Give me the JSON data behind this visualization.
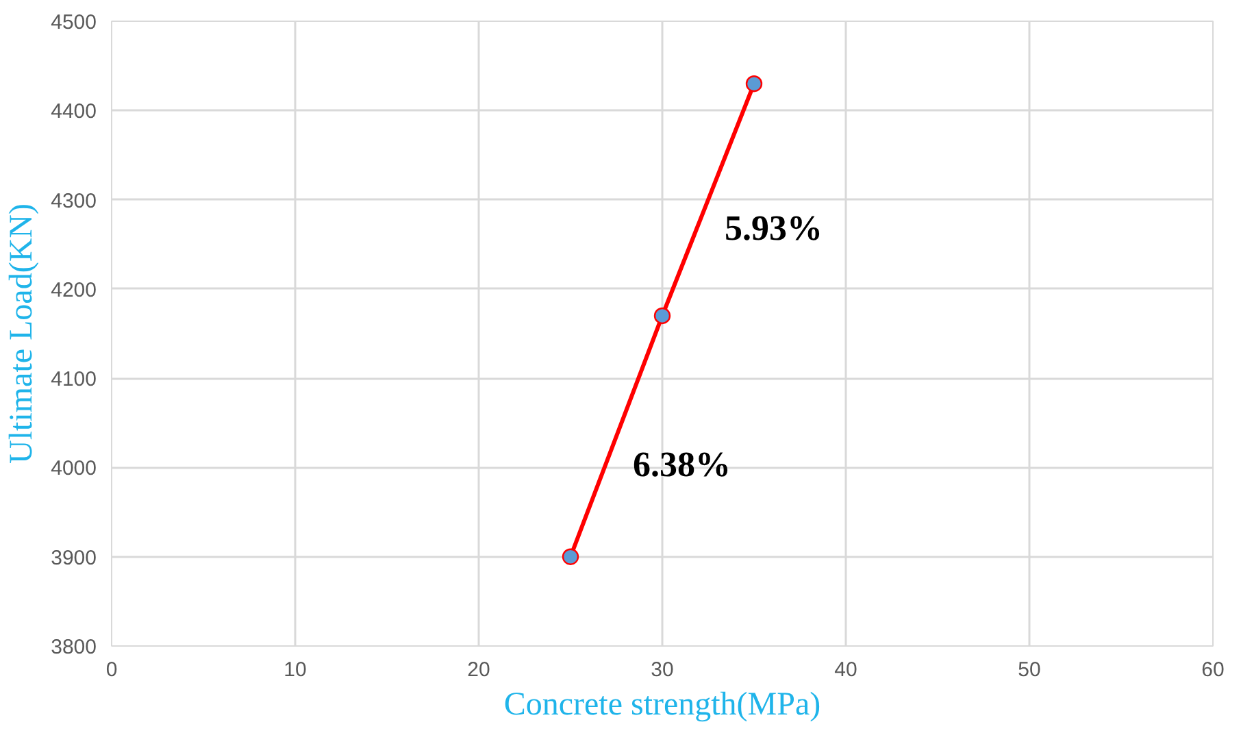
{
  "chart_data": {
    "type": "line",
    "xlabel": "Concrete strength(MPa)",
    "ylabel": "Ultimate Load(KN)",
    "x": [
      25,
      30,
      35
    ],
    "series": [
      {
        "color": "#ff0000",
        "values": [
          3900,
          4170,
          4430
        ]
      }
    ],
    "xlim": [
      0,
      60
    ],
    "xticks": [
      0,
      10,
      20,
      30,
      40,
      50,
      60
    ],
    "ylim": [
      3800,
      4500
    ],
    "yticks": [
      3800,
      3900,
      4000,
      4100,
      4200,
      4300,
      4400,
      4500
    ],
    "grid": true,
    "marker": "circle",
    "line_style": "solid",
    "annotations": [
      "5.93%",
      "6.38%"
    ]
  }
}
